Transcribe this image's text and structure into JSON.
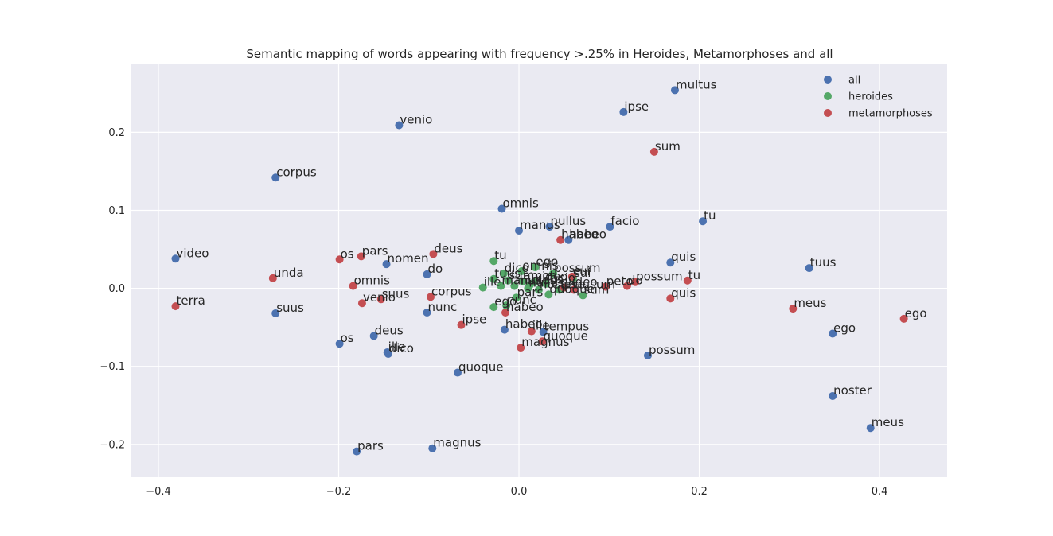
{
  "chart_data": {
    "type": "scatter",
    "title": "Semantic mapping of words appearing with frequency >.25% in Heroides, Metamorphoses and all",
    "xlim": [
      -0.43,
      0.475
    ],
    "ylim": [
      -0.242,
      0.287
    ],
    "x_ticks": [
      -0.4,
      -0.2,
      0.0,
      0.2,
      0.4
    ],
    "x_tick_labels": [
      "−0.4",
      "−0.2",
      "0.0",
      "0.2",
      "0.4"
    ],
    "y_ticks": [
      -0.2,
      -0.1,
      0.0,
      0.1,
      0.2
    ],
    "y_tick_labels": [
      "−0.2",
      "−0.1",
      "0.0",
      "0.1",
      "0.2"
    ],
    "grid": true,
    "legend_position": "top-right",
    "colors": {
      "all": "#4c72b0",
      "heroides": "#55a868",
      "metamorphoses": "#c44e52",
      "background": "#eaeaf2",
      "grid": "#ffffff"
    },
    "series": [
      {
        "name": "all",
        "points": [
          {
            "x": 0.173,
            "y": 0.254,
            "label": "multus"
          },
          {
            "x": 0.116,
            "y": 0.226,
            "label": "ipse"
          },
          {
            "x": -0.133,
            "y": 0.209,
            "label": "venio"
          },
          {
            "x": -0.27,
            "y": 0.142,
            "label": "corpus"
          },
          {
            "x": -0.019,
            "y": 0.102,
            "label": "omnis"
          },
          {
            "x": 0.204,
            "y": 0.086,
            "label": "tu"
          },
          {
            "x": 0.101,
            "y": 0.079,
            "label": "facio"
          },
          {
            "x": 0.034,
            "y": 0.079,
            "label": "nullus"
          },
          {
            "x": 0.0,
            "y": 0.074,
            "label": "manus"
          },
          {
            "x": 0.055,
            "y": 0.062,
            "label": "habeo"
          },
          {
            "x": -0.381,
            "y": 0.038,
            "label": "video"
          },
          {
            "x": 0.168,
            "y": 0.033,
            "label": "quis"
          },
          {
            "x": -0.147,
            "y": 0.031,
            "label": "nomen"
          },
          {
            "x": 0.322,
            "y": 0.026,
            "label": "tuus"
          },
          {
            "x": -0.102,
            "y": 0.018,
            "label": "do"
          },
          {
            "x": -0.27,
            "y": -0.032,
            "label": "suus"
          },
          {
            "x": -0.102,
            "y": -0.031,
            "label": "nunc"
          },
          {
            "x": -0.016,
            "y": -0.053,
            "label": "habeo"
          },
          {
            "x": 0.027,
            "y": -0.056,
            "label": "tempus"
          },
          {
            "x": 0.348,
            "y": -0.058,
            "label": "ego"
          },
          {
            "x": -0.161,
            "y": -0.061,
            "label": "deus"
          },
          {
            "x": -0.199,
            "y": -0.071,
            "label": "os"
          },
          {
            "x": -0.146,
            "y": -0.082,
            "label": "ille"
          },
          {
            "x": -0.145,
            "y": -0.084,
            "label": "dico"
          },
          {
            "x": 0.143,
            "y": -0.086,
            "label": "possum"
          },
          {
            "x": -0.068,
            "y": -0.108,
            "label": "quoque"
          },
          {
            "x": 0.348,
            "y": -0.138,
            "label": "noster"
          },
          {
            "x": 0.39,
            "y": -0.179,
            "label": "meus"
          },
          {
            "x": -0.096,
            "y": -0.205,
            "label": "magnus"
          },
          {
            "x": -0.18,
            "y": -0.209,
            "label": "pars"
          }
        ]
      },
      {
        "name": "heroides",
        "points": [
          {
            "x": -0.028,
            "y": 0.035,
            "label": "tu"
          },
          {
            "x": 0.018,
            "y": 0.027,
            "label": "ego"
          },
          {
            "x": -0.017,
            "y": 0.019,
            "label": "dico"
          },
          {
            "x": 0.038,
            "y": 0.019,
            "label": "possum"
          },
          {
            "x": 0.003,
            "y": 0.022,
            "label": "omnis"
          },
          {
            "x": 0.06,
            "y": 0.013,
            "label": "sui"
          },
          {
            "x": -0.028,
            "y": 0.012,
            "label": "tuus"
          },
          {
            "x": -0.012,
            "y": 0.01,
            "label": "sum"
          },
          {
            "x": 0.004,
            "y": 0.009,
            "label": "amor"
          },
          {
            "x": 0.017,
            "y": 0.008,
            "label": "video"
          },
          {
            "x": 0.03,
            "y": 0.006,
            "label": "facio"
          },
          {
            "x": 0.012,
            "y": 0.004,
            "label": "meus"
          },
          {
            "x": -0.04,
            "y": 0.001,
            "label": "ille"
          },
          {
            "x": -0.02,
            "y": 0.003,
            "label": "manus"
          },
          {
            "x": -0.005,
            "y": 0.003,
            "label": "multus"
          },
          {
            "x": 0.01,
            "y": 0.0,
            "label": "nullus"
          },
          {
            "x": 0.022,
            "y": -0.002,
            "label": "noster"
          },
          {
            "x": 0.045,
            "y": -0.002,
            "label": "ipse"
          },
          {
            "x": 0.071,
            "y": -0.009,
            "label": "sum"
          },
          {
            "x": 0.033,
            "y": -0.008,
            "label": "quoque"
          },
          {
            "x": -0.003,
            "y": -0.012,
            "label": "pars"
          },
          {
            "x": -0.028,
            "y": -0.024,
            "label": "ego"
          },
          {
            "x": -0.014,
            "y": -0.022,
            "label": "nunc"
          }
        ]
      },
      {
        "name": "metamorphoses",
        "points": [
          {
            "x": 0.15,
            "y": 0.175,
            "label": "sum"
          },
          {
            "x": 0.046,
            "y": 0.062,
            "label": "habeo"
          },
          {
            "x": -0.095,
            "y": 0.044,
            "label": "deus"
          },
          {
            "x": -0.175,
            "y": 0.041,
            "label": "pars"
          },
          {
            "x": -0.199,
            "y": 0.037,
            "label": "os"
          },
          {
            "x": 0.059,
            "y": 0.015,
            "label": "cui"
          },
          {
            "x": -0.273,
            "y": 0.013,
            "label": "unda"
          },
          {
            "x": 0.187,
            "y": 0.01,
            "label": "tu"
          },
          {
            "x": 0.129,
            "y": 0.008,
            "label": "possum"
          },
          {
            "x": -0.184,
            "y": 0.003,
            "label": "omnis"
          },
          {
            "x": 0.12,
            "y": 0.003,
            "label": "do"
          },
          {
            "x": 0.096,
            "y": 0.002,
            "label": "peto"
          },
          {
            "x": 0.05,
            "y": 0.001,
            "label": "video"
          },
          {
            "x": 0.061,
            "y": -0.002,
            "label": "nusum"
          },
          {
            "x": -0.098,
            "y": -0.011,
            "label": "corpus"
          },
          {
            "x": -0.153,
            "y": -0.014,
            "label": "suus"
          },
          {
            "x": 0.168,
            "y": -0.013,
            "label": "quis"
          },
          {
            "x": -0.174,
            "y": -0.019,
            "label": "venio"
          },
          {
            "x": -0.381,
            "y": -0.023,
            "label": "terra"
          },
          {
            "x": 0.304,
            "y": -0.026,
            "label": "meus"
          },
          {
            "x": -0.015,
            "y": -0.031,
            "label": "habeo"
          },
          {
            "x": 0.427,
            "y": -0.039,
            "label": "ego"
          },
          {
            "x": -0.064,
            "y": -0.047,
            "label": "ipse"
          },
          {
            "x": 0.014,
            "y": -0.055,
            "label": "ille"
          },
          {
            "x": 0.026,
            "y": -0.068,
            "label": "quoque"
          },
          {
            "x": 0.002,
            "y": -0.076,
            "label": "magnus"
          }
        ]
      }
    ]
  }
}
